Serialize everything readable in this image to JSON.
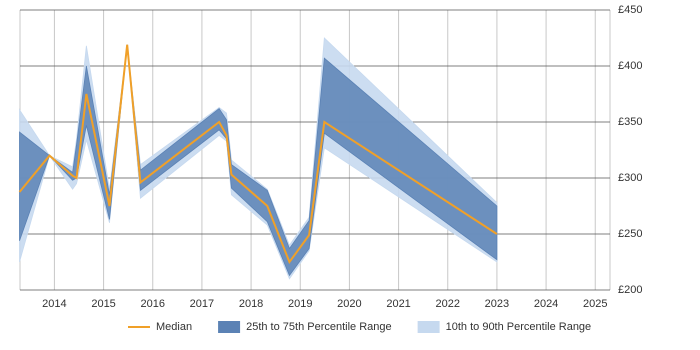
{
  "chart_data": {
    "type": "line",
    "x": [
      2013.29,
      2013.9,
      2014.37,
      2014.45,
      2014.65,
      2015.12,
      2015.48,
      2015.75,
      2017.35,
      2017.5,
      2017.6,
      2018.33,
      2018.78,
      2019.18,
      2019.49,
      2023.0
    ],
    "series": [
      {
        "name": "Median",
        "color": "#f0a028",
        "values": [
          287.5,
          320,
          302,
          300,
          375,
          275,
          419,
          296,
          350,
          338,
          303,
          275,
          225,
          249,
          350,
          250
        ]
      },
      {
        "name": "25th to 75th Percentile Range",
        "color": "#5b82b5",
        "lower": [
          244,
          320,
          298,
          300,
          347,
          263,
          419,
          289,
          343,
          335,
          291,
          261,
          213,
          237,
          340,
          227
        ],
        "upper": [
          341,
          320,
          305,
          330,
          400,
          285,
          419,
          307,
          362,
          352,
          312,
          289,
          237,
          262,
          407,
          275
        ]
      },
      {
        "name": "10th to 90th Percentile Range",
        "color": "#c6d9ef",
        "lower": [
          225,
          320,
          290,
          295,
          334,
          260,
          419,
          282,
          338,
          333,
          285,
          258,
          210,
          235,
          327,
          225
        ],
        "upper": [
          361,
          320,
          310,
          335,
          418,
          290,
          419,
          312,
          363,
          358,
          316,
          290,
          240,
          265,
          425,
          278
        ]
      }
    ],
    "xlim": [
      2013.3,
      2025.3
    ],
    "xticks": [
      2014,
      2015,
      2016,
      2017,
      2018,
      2019,
      2020,
      2021,
      2022,
      2023,
      2024,
      2025
    ],
    "ylim": [
      200,
      450
    ],
    "yticks": [
      {
        "value": 200,
        "label": "£200"
      },
      {
        "value": 250,
        "label": "£250"
      },
      {
        "value": 300,
        "label": "£300"
      },
      {
        "value": 350,
        "label": "£350"
      },
      {
        "value": 400,
        "label": "£400"
      },
      {
        "value": 450,
        "label": "£450"
      }
    ],
    "grid": true
  }
}
